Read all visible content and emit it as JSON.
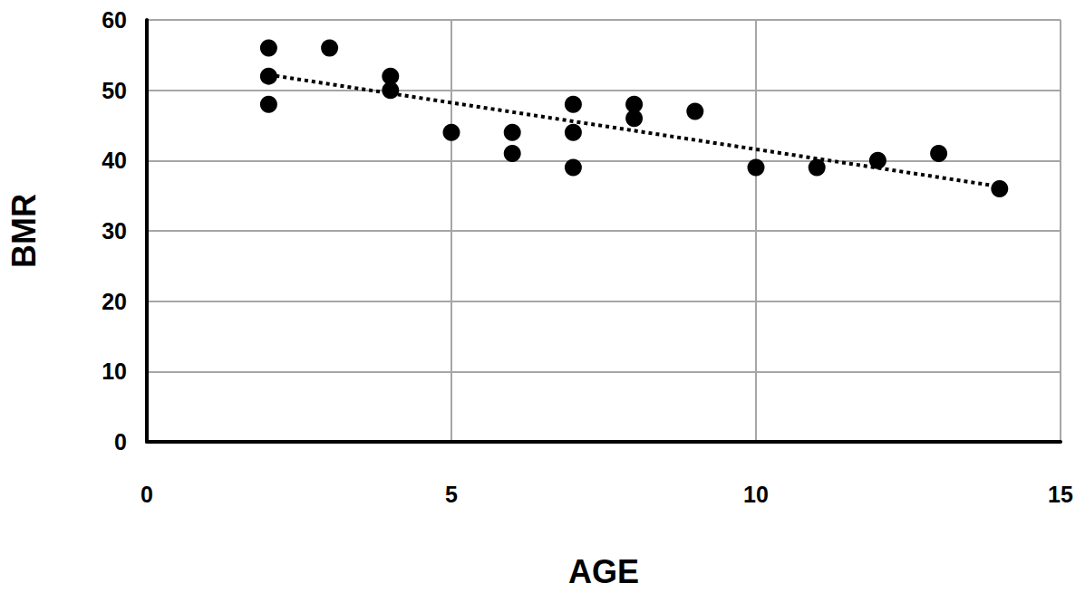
{
  "chart_data": {
    "type": "scatter",
    "x_label": "AGE",
    "y_label": "BMR",
    "xlim": [
      0,
      15
    ],
    "xticks": [
      0,
      5,
      10,
      15
    ],
    "ylim": [
      0,
      60
    ],
    "yticks": [
      0,
      10,
      20,
      30,
      40,
      50,
      60
    ],
    "grid": true,
    "series": [
      {
        "type": "scatter",
        "color": "#000000",
        "marker": "circle",
        "x": [
          2,
          2,
          2,
          3,
          4,
          4,
          5,
          6,
          6,
          7,
          7,
          7,
          8,
          8,
          9,
          10,
          11,
          12,
          13,
          14
        ],
        "values": [
          56,
          52,
          48,
          56,
          52,
          50,
          44,
          44,
          41,
          48,
          44,
          39,
          48,
          46,
          47,
          39,
          39,
          40,
          41,
          36
        ]
      },
      {
        "type": "line",
        "color": "#000000",
        "line_style": "dotted",
        "x": [
          2,
          14
        ],
        "values": [
          52.2,
          36.3
        ]
      }
    ]
  }
}
